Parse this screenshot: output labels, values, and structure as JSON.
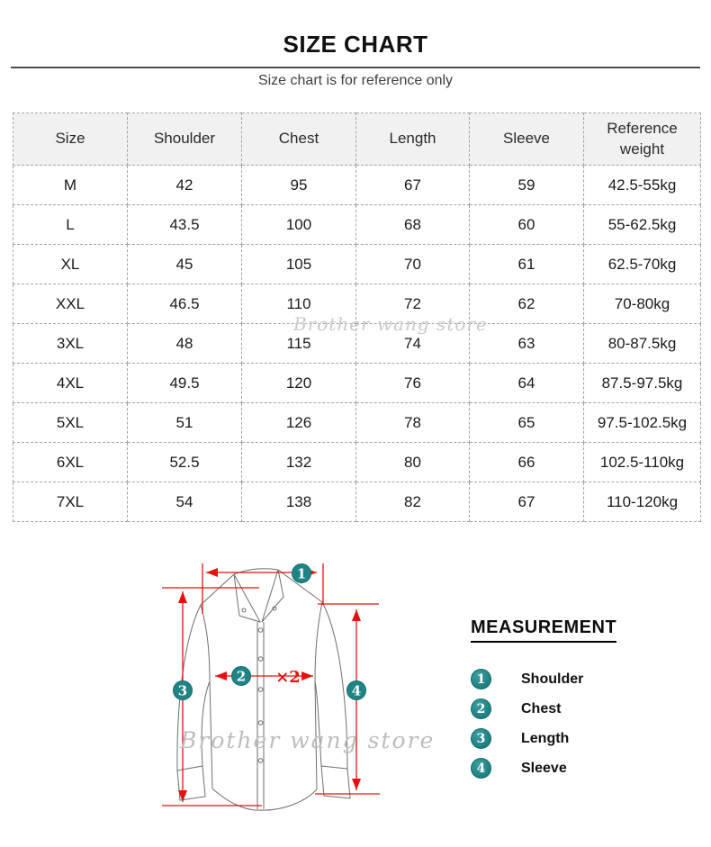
{
  "header": {
    "title": "SIZE CHART",
    "subtitle": "Size chart is for reference only"
  },
  "watermark_text": "Brother wang store",
  "size_table": {
    "columns": [
      "Size",
      "Shoulder",
      "Chest",
      "Length",
      "Sleeve",
      "Reference weight"
    ],
    "rows": [
      [
        "M",
        "42",
        "95",
        "67",
        "59",
        "42.5-55kg"
      ],
      [
        "L",
        "43.5",
        "100",
        "68",
        "60",
        "55-62.5kg"
      ],
      [
        "XL",
        "45",
        "105",
        "70",
        "61",
        "62.5-70kg"
      ],
      [
        "XXL",
        "46.5",
        "110",
        "72",
        "62",
        "70-80kg"
      ],
      [
        "3XL",
        "48",
        "115",
        "74",
        "63",
        "80-87.5kg"
      ],
      [
        "4XL",
        "49.5",
        "120",
        "76",
        "64",
        "87.5-97.5kg"
      ],
      [
        "5XL",
        "51",
        "126",
        "78",
        "65",
        "97.5-102.5kg"
      ],
      [
        "6XL",
        "52.5",
        "132",
        "80",
        "66",
        "102.5-110kg"
      ],
      [
        "7XL",
        "54",
        "138",
        "82",
        "67",
        "110-120kg"
      ]
    ]
  },
  "diagram": {
    "markers": [
      "1",
      "2",
      "3",
      "4"
    ],
    "chest_note": "×2"
  },
  "measurement": {
    "heading": "MEASUREMENT",
    "items": [
      {
        "number": "1",
        "label": "Shoulder"
      },
      {
        "number": "2",
        "label": "Chest"
      },
      {
        "number": "3",
        "label": "Length"
      },
      {
        "number": "4",
        "label": "Sleeve"
      }
    ]
  },
  "colors": {
    "arrow_red": "#e8100e",
    "marker_teal": "#1f8485",
    "watermark_gray": "#c9c9c9",
    "shirt_line_gray": "#6e6e6e",
    "table_header_bg": "#f1f1f1"
  }
}
